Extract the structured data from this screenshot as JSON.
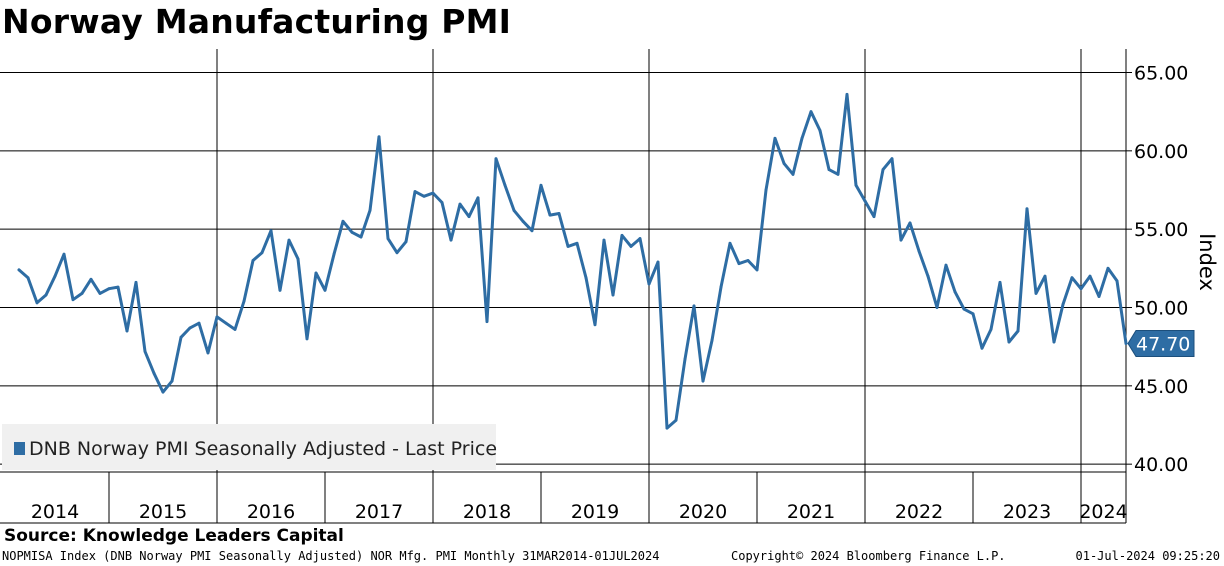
{
  "header": {
    "title": "Norway Manufacturing PMI"
  },
  "footer": {
    "source": "Source: Knowledge Leaders Capital",
    "description": "NOPMISA Index (DNB Norway PMI Seasonally Adjusted) NOR Mfg. PMI  Monthly 31MAR2014-01JUL2024",
    "copyright": "Copyright© 2024 Bloomberg Finance L.P.",
    "timestamp": "01-Jul-2024 09:25:20"
  },
  "colors": {
    "series": "#2e6da4",
    "grid": "#000000",
    "legend_bg": "#f0f0f0"
  },
  "chart_data": {
    "type": "line",
    "title": "Norway Manufacturing PMI",
    "ylabel": "Index",
    "xlabel": "",
    "ylim": [
      39.5,
      66.5
    ],
    "y_ticks": [
      40,
      45,
      50,
      55,
      60,
      65
    ],
    "y_tick_labels": [
      "40.00",
      "45.00",
      "50.00",
      "55.00",
      "60.00",
      "65.00"
    ],
    "x_range": [
      "2014-03",
      "2024-06"
    ],
    "x_labels": [
      "2014",
      "2015",
      "2016",
      "2017",
      "2018",
      "2019",
      "2020",
      "2021",
      "2022",
      "2023",
      "2024"
    ],
    "legend": {
      "label": "DNB Norway PMI Seasonally Adjusted - Last Price",
      "position": "bottom-left"
    },
    "last_value": {
      "value": 47.7,
      "label": "47.70"
    },
    "grid": true,
    "series": [
      {
        "name": "DNB Norway PMI Seasonally Adjusted - Last Price",
        "start": "2014-03",
        "frequency": "monthly",
        "values": [
          52.4,
          51.9,
          50.3,
          50.8,
          52.0,
          53.4,
          50.5,
          50.9,
          51.8,
          50.9,
          51.2,
          51.3,
          48.5,
          51.6,
          47.2,
          45.8,
          44.6,
          45.3,
          48.1,
          48.7,
          49.0,
          47.1,
          49.4,
          49.0,
          48.6,
          50.4,
          53.0,
          53.5,
          54.9,
          51.1,
          54.3,
          53.1,
          48.0,
          52.2,
          51.1,
          53.4,
          55.5,
          54.8,
          54.5,
          56.2,
          60.9,
          54.4,
          53.5,
          54.2,
          57.4,
          57.1,
          57.3,
          56.7,
          54.3,
          56.6,
          55.8,
          57.0,
          49.1,
          59.5,
          57.8,
          56.2,
          55.5,
          54.9,
          57.8,
          55.9,
          56.0,
          53.9,
          54.1,
          51.9,
          48.9,
          54.3,
          50.8,
          54.6,
          53.9,
          54.4,
          51.5,
          52.9,
          42.3,
          42.8,
          46.7,
          50.1,
          45.3,
          47.9,
          51.3,
          54.1,
          52.8,
          53.0,
          52.4,
          57.5,
          60.8,
          59.2,
          58.5,
          60.8,
          62.5,
          61.3,
          58.8,
          58.5,
          63.6,
          57.8,
          56.8,
          55.8,
          58.8,
          59.5,
          54.3,
          55.4,
          53.6,
          52.0,
          50.0,
          52.7,
          51.0,
          49.9,
          49.6,
          47.4,
          48.6,
          51.6,
          47.8,
          48.5,
          56.3,
          50.9,
          52.0,
          47.8,
          50.2,
          51.9,
          51.2,
          52.0,
          50.7,
          52.5,
          51.7,
          47.7
        ]
      }
    ]
  }
}
